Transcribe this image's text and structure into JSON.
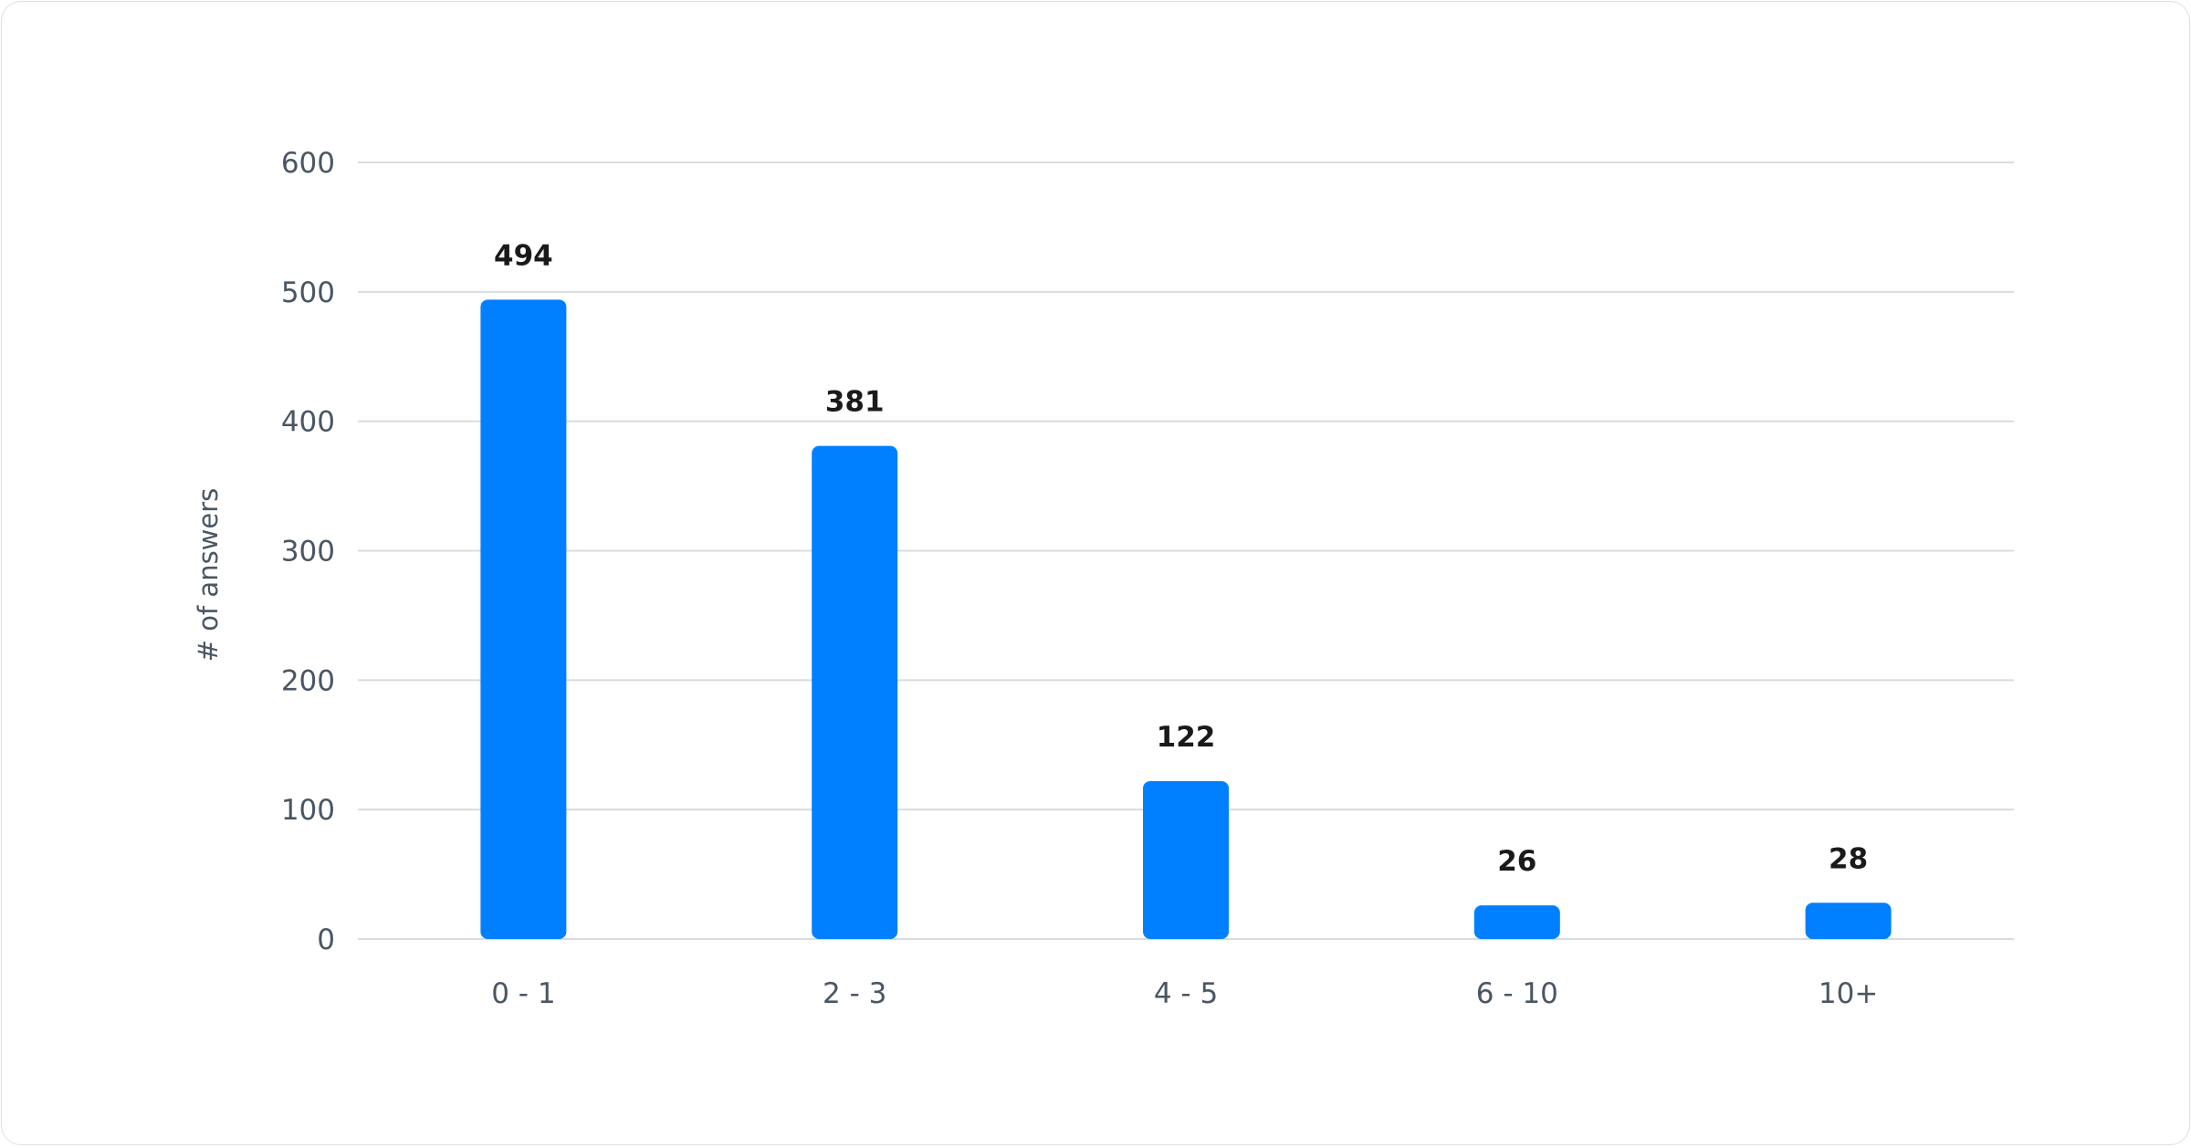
{
  "chart_data": {
    "type": "bar",
    "categories": [
      "0 - 1",
      "2 - 3",
      "4 - 5",
      "6 - 10",
      "10+"
    ],
    "values": [
      494,
      381,
      122,
      26,
      28
    ],
    "title": "",
    "xlabel": "",
    "ylabel": "# of answers",
    "ylim": [
      0,
      600
    ],
    "yticks": [
      0,
      100,
      200,
      300,
      400,
      500,
      600
    ],
    "grid": true,
    "data_labels": true,
    "bar_color": "#0080FF",
    "grid_color": "#d8dce1"
  }
}
